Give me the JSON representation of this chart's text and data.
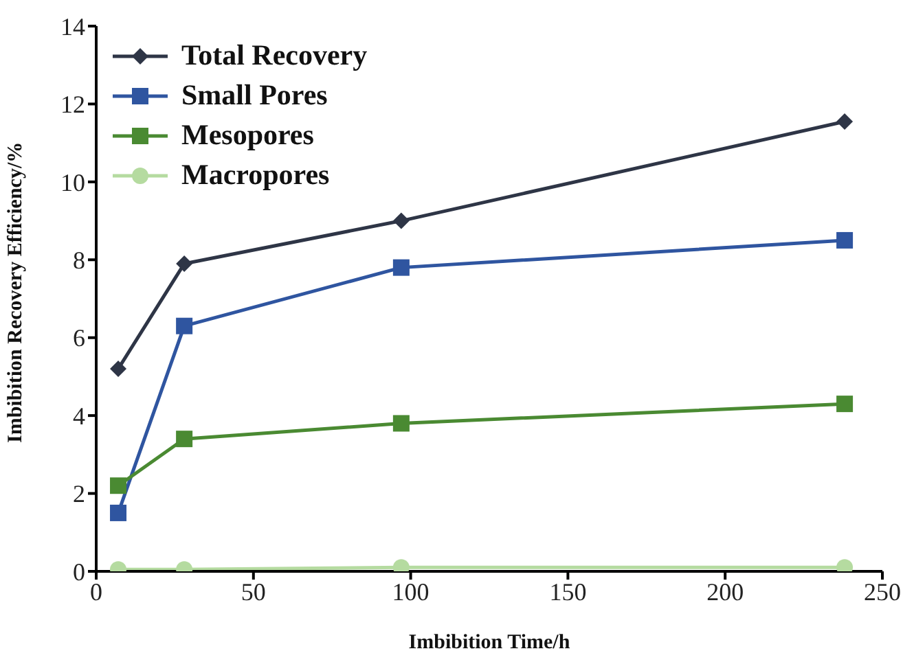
{
  "chart_data": {
    "type": "line",
    "xlabel": "Imbibition Time/h",
    "ylabel": "Imbibition Recovery Efficiency/%",
    "xlim": [
      0,
      250
    ],
    "xticks": [
      0,
      50,
      100,
      150,
      200,
      250
    ],
    "ylim": [
      0,
      14
    ],
    "yticks": [
      0,
      2,
      4,
      6,
      8,
      10,
      12,
      14
    ],
    "x": [
      7,
      28,
      97,
      238
    ],
    "grid": false,
    "legend": "top left",
    "line_style": "solid",
    "series": [
      {
        "name": "Total Recovery",
        "color": "#2e3546",
        "marker": "diamond",
        "values": [
          5.2,
          7.9,
          9.0,
          11.55
        ]
      },
      {
        "name": "Small Pores",
        "color": "#2f55a0",
        "marker": "square",
        "values": [
          1.5,
          6.3,
          7.8,
          8.5
        ]
      },
      {
        "name": "Mesopores",
        "color": "#4a8a32",
        "marker": "square",
        "values": [
          2.2,
          3.4,
          3.8,
          4.3
        ]
      },
      {
        "name": "Macropores",
        "color": "#b5dba0",
        "marker": "circle",
        "values": [
          0.05,
          0.05,
          0.1,
          0.1
        ]
      }
    ]
  }
}
